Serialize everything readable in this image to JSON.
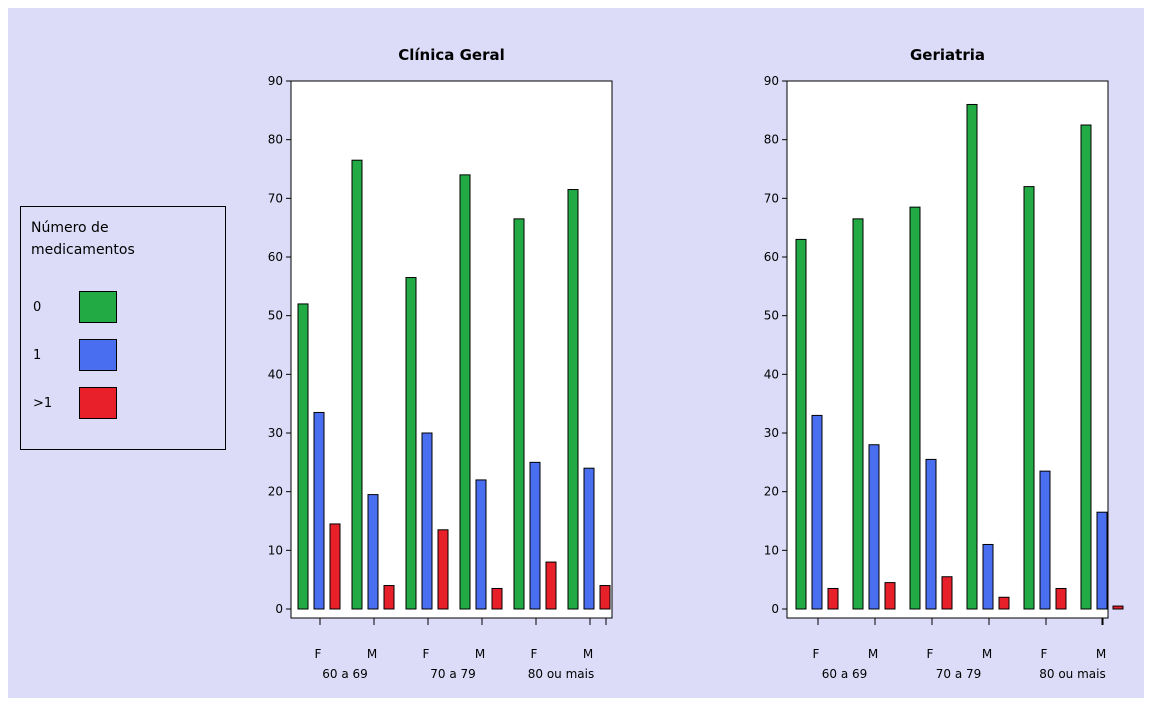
{
  "legend": {
    "title": "Número de medicamentos",
    "items": [
      {
        "label": "0",
        "color": "#22aa44"
      },
      {
        "label": "1",
        "color": "#4a6ef0"
      },
      {
        "label": ">1",
        "color": "#e8202a"
      }
    ]
  },
  "chart_data": [
    {
      "type": "bar",
      "title": "Clínica Geral",
      "ylim": [
        0,
        90
      ],
      "yticks": [
        0,
        10,
        20,
        30,
        40,
        50,
        60,
        70,
        80,
        90
      ],
      "categories": [
        "F",
        "M",
        "F",
        "M",
        "F",
        "M"
      ],
      "groups": [
        "60 a 69",
        "70 a 79",
        "80 ou mais"
      ],
      "series": [
        {
          "name": "0",
          "color": "#22aa44",
          "values": [
            52,
            76.5,
            56.5,
            74,
            66.5,
            71.5
          ]
        },
        {
          "name": "1",
          "color": "#4a6ef0",
          "values": [
            33.5,
            19.5,
            30,
            22,
            25,
            24
          ]
        },
        {
          "name": ">1",
          "color": "#e8202a",
          "values": [
            14.5,
            4,
            13.5,
            3.5,
            8,
            4
          ]
        }
      ]
    },
    {
      "type": "bar",
      "title": "Geriatria",
      "ylim": [
        0,
        90
      ],
      "yticks": [
        0,
        10,
        20,
        30,
        40,
        50,
        60,
        70,
        80,
        90
      ],
      "categories": [
        "F",
        "M",
        "F",
        "M",
        "F",
        "M"
      ],
      "groups": [
        "60 a 69",
        "70 a 79",
        "80 ou mais"
      ],
      "series": [
        {
          "name": "0",
          "color": "#22aa44",
          "values": [
            63,
            66.5,
            68.5,
            86,
            72,
            82.5
          ]
        },
        {
          "name": "1",
          "color": "#4a6ef0",
          "values": [
            33,
            28,
            25.5,
            11,
            23.5,
            16.5
          ]
        },
        {
          "name": ">1",
          "color": "#e8202a",
          "values": [
            3.5,
            4.5,
            5.5,
            2,
            3.5,
            0.5
          ]
        }
      ]
    }
  ]
}
